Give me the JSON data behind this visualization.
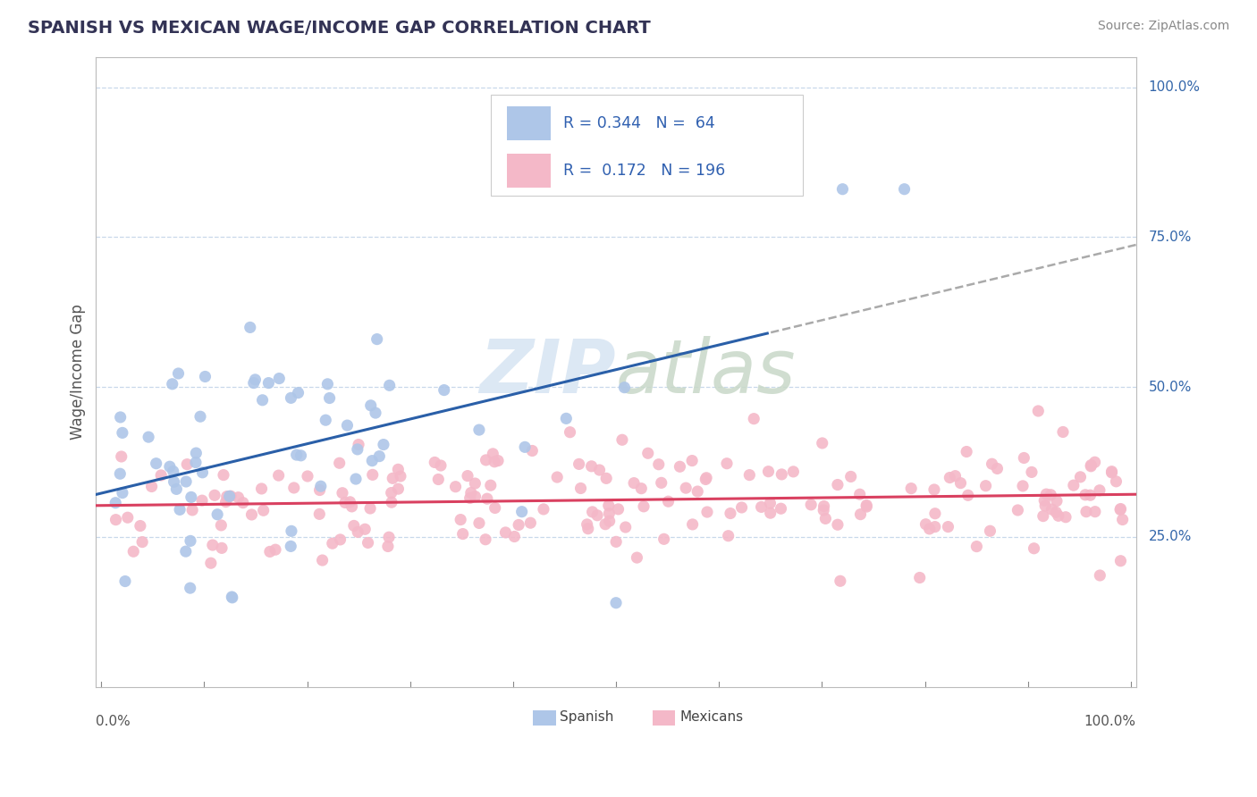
{
  "title": "SPANISH VS MEXICAN WAGE/INCOME GAP CORRELATION CHART",
  "source": "Source: ZipAtlas.com",
  "ylabel": "Wage/Income Gap",
  "legend_r": [
    0.344,
    0.172
  ],
  "legend_n": [
    64,
    196
  ],
  "blue_color": "#aec6e8",
  "pink_color": "#f4b8c8",
  "blue_line_color": "#2a5fa8",
  "pink_line_color": "#d94060",
  "dash_color": "#aaaaaa",
  "watermark_color": "#dce8f4",
  "background_color": "#ffffff",
  "grid_color": "#c8d8ea",
  "title_color": "#333355",
  "source_color": "#888888",
  "label_color": "#3366aa",
  "axis_label_color": "#555555",
  "ylabel_color": "#555555",
  "legend_text_color": "#3060b0",
  "bottom_legend_color": "#444444",
  "ymin": 0.0,
  "ymax": 1.0,
  "xmin": 0.0,
  "xmax": 1.0,
  "ytick_values": [
    0.25,
    0.5,
    0.75,
    1.0
  ],
  "ytick_labels": [
    "25.0%",
    "50.0%",
    "75.0%",
    "100.0%"
  ]
}
